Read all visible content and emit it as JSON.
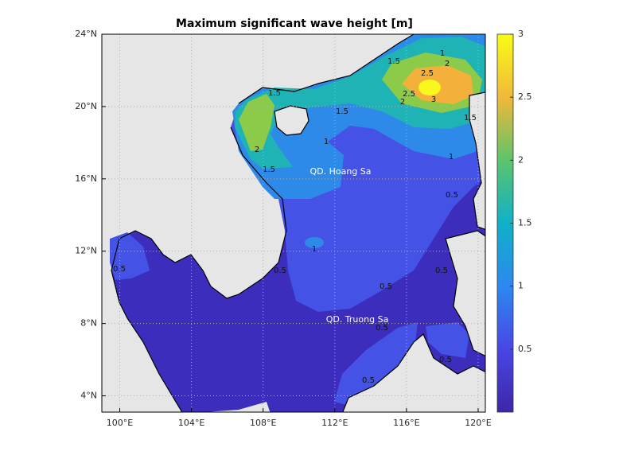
{
  "map": {
    "title": "Maximum significant wave height [m]",
    "lon_lim": [
      99,
      120.4
    ],
    "lat_lim": [
      3.1,
      24
    ],
    "lon_ticks": [
      {
        "value": 100,
        "label": "100°E"
      },
      {
        "value": 104,
        "label": "104°E"
      },
      {
        "value": 108,
        "label": "108°E"
      },
      {
        "value": 112,
        "label": "112°E"
      },
      {
        "value": 116,
        "label": "116°E"
      },
      {
        "value": 120,
        "label": "120°E"
      }
    ],
    "lat_ticks": [
      {
        "value": 4,
        "label": "4°N"
      },
      {
        "value": 8,
        "label": "8°N"
      },
      {
        "value": 12,
        "label": "12°N"
      },
      {
        "value": 16,
        "label": "16°N"
      },
      {
        "value": 20,
        "label": "20°N"
      },
      {
        "value": 24,
        "label": "24°N"
      }
    ],
    "colorbar": {
      "lim": [
        0,
        3
      ],
      "ticks": [
        0.5,
        1,
        1.5,
        2,
        2.5,
        3
      ]
    },
    "annotations": [
      "QD. Hoang Sa",
      "QD. Truong Sa"
    ],
    "contour_labels": [
      1,
      2,
      2.5,
      1.5,
      2.5,
      3,
      2,
      1.5,
      1,
      1.5,
      1.5,
      1,
      2,
      1.5,
      0.5,
      1,
      0.5,
      0.5,
      0.5,
      0.5,
      0.5,
      0.5,
      0.5
    ]
  }
}
